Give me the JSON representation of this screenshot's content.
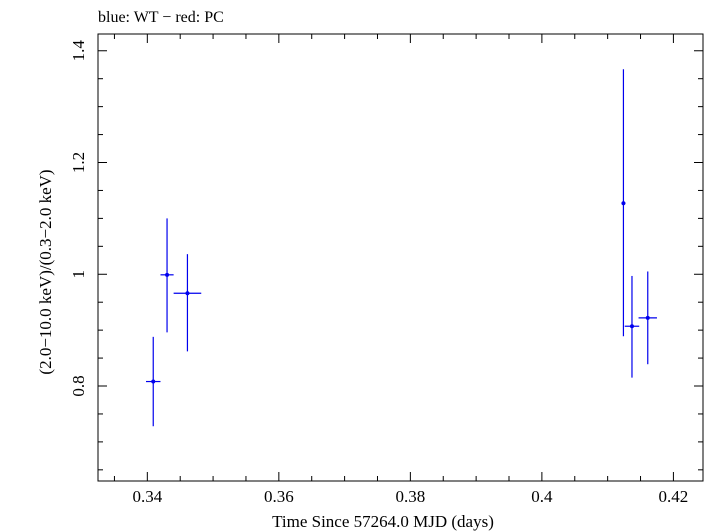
{
  "header": {
    "title": "blue: WT − red: PC"
  },
  "colors": {
    "wt": "#0000ee",
    "pc": "#ee0000",
    "axis": "#000000"
  },
  "chart_data": {
    "type": "scatter",
    "title": "blue: WT − red: PC",
    "xlabel": "Time Since 57264.0 MJD (days)",
    "ylabel": "(2.0−10.0 keV)/(0.3−2.0 keV)",
    "xlim": [
      0.3325,
      0.4245
    ],
    "ylim": [
      0.63,
      1.43
    ],
    "xticks": [
      0.34,
      0.36,
      0.38,
      0.4,
      0.42
    ],
    "xtick_labels": [
      "0.34",
      "0.36",
      "0.38",
      "0.4",
      "0.42"
    ],
    "yticks": [
      0.8,
      1.0,
      1.2,
      1.4
    ],
    "ytick_labels": [
      "0.8",
      "1",
      "1.2",
      "1.4"
    ],
    "grid": false,
    "series": [
      {
        "name": "WT",
        "color": "#0000ee",
        "points": [
          {
            "x": 0.3409,
            "xerr": 0.0011,
            "y": 0.808,
            "yerr_lo": 0.08,
            "yerr_hi": 0.08
          },
          {
            "x": 0.343,
            "xerr": 0.001,
            "y": 0.999,
            "yerr_lo": 0.103,
            "yerr_hi": 0.101
          },
          {
            "x": 0.3461,
            "xerr": 0.0021,
            "y": 0.966,
            "yerr_lo": 0.104,
            "yerr_hi": 0.07
          },
          {
            "x": 0.4124,
            "xerr": 0.0003,
            "y": 1.127,
            "yerr_lo": 0.238,
            "yerr_hi": 0.24
          },
          {
            "x": 0.4137,
            "xerr": 0.0011,
            "y": 0.907,
            "yerr_lo": 0.092,
            "yerr_hi": 0.09
          },
          {
            "x": 0.4161,
            "xerr": 0.0014,
            "y": 0.922,
            "yerr_lo": 0.083,
            "yerr_hi": 0.083
          }
        ]
      },
      {
        "name": "PC",
        "color": "#ee0000",
        "points": []
      }
    ]
  }
}
